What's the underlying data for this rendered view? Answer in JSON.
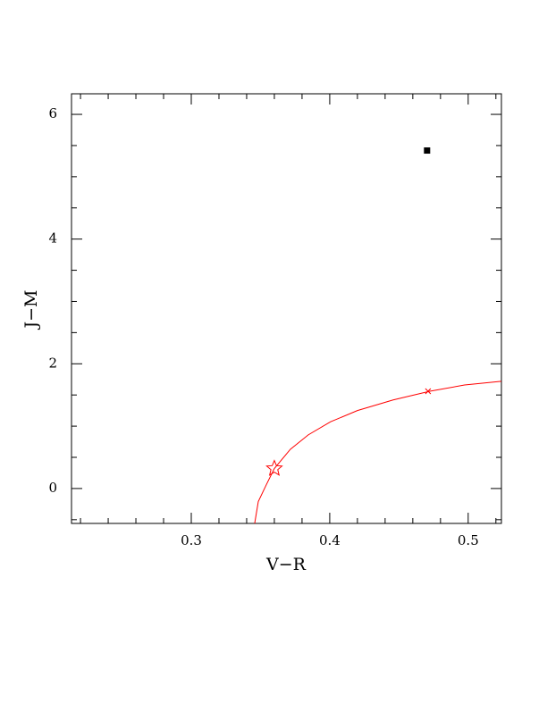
{
  "chart_data": {
    "type": "line",
    "xlabel": "V−R",
    "ylabel": "J−M",
    "xlim": [
      0.2135,
      0.524
    ],
    "ylim": [
      -0.56,
      6.33
    ],
    "xticks": [
      0.3,
      0.4,
      0.5
    ],
    "yticks": [
      0,
      2,
      4,
      6
    ],
    "xminorticks": [
      0.22,
      0.24,
      0.26,
      0.28,
      0.32,
      0.34,
      0.36,
      0.38,
      0.42,
      0.44,
      0.46,
      0.48,
      0.52
    ],
    "yminorticks": [
      -0.5,
      0.5,
      1,
      1.5,
      2.5,
      3,
      3.5,
      4.5,
      5,
      5.5
    ],
    "series": [
      {
        "color": "#ff0000",
        "x": [
          0.3458,
          0.3484,
          0.3542,
          0.36,
          0.3716,
          0.3845,
          0.4006,
          0.42,
          0.4458,
          0.4723,
          0.4974,
          0.5239
        ],
        "values": [
          -0.56,
          -0.21,
          0.06,
          0.32,
          0.63,
          0.86,
          1.07,
          1.25,
          1.42,
          1.56,
          1.66,
          1.72
        ]
      }
    ],
    "markers": [
      {
        "shape": "star",
        "color": "#ff0000",
        "x": 0.36,
        "y": 0.32
      },
      {
        "shape": "cross",
        "color": "#ff0000",
        "x": 0.471,
        "y": 1.56
      },
      {
        "shape": "square",
        "color": "#000000",
        "x": 0.4703,
        "y": 5.42
      }
    ]
  }
}
